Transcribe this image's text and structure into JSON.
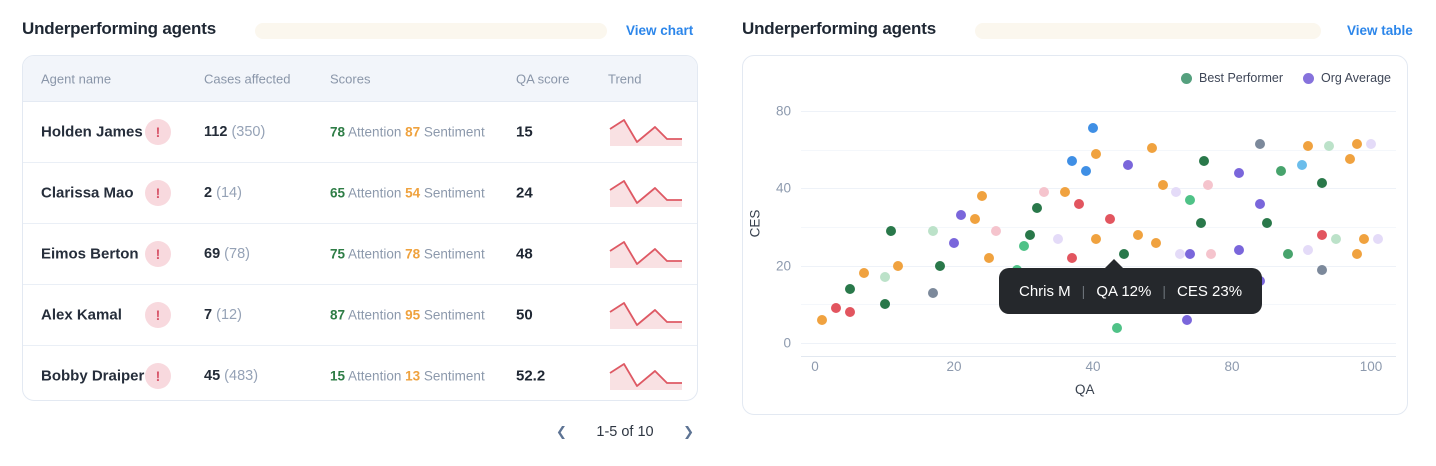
{
  "icons": {
    "chevron_left": "❮",
    "chevron_right": "❯",
    "warning_glyph": "!"
  },
  "left_panel": {
    "title": "Underperforming agents",
    "action": "View chart",
    "columns": [
      "Agent name",
      "Cases affected",
      "Scores",
      "QA score",
      "Trend"
    ],
    "attention_label": "Attention",
    "sentiment_label": "Sentiment",
    "rows": [
      {
        "name": "Holden James",
        "cases": "112",
        "cases_total": "(350)",
        "attention": "78",
        "sentiment": "87",
        "qa": "15"
      },
      {
        "name": "Clarissa Mao",
        "cases": "2",
        "cases_total": "(14)",
        "attention": "65",
        "sentiment": "54",
        "qa": "24"
      },
      {
        "name": "Eimos Berton",
        "cases": "69",
        "cases_total": "(78)",
        "attention": "75",
        "sentiment": "78",
        "qa": "48"
      },
      {
        "name": "Alex Kamal",
        "cases": "7",
        "cases_total": "(12)",
        "attention": "87",
        "sentiment": "95",
        "qa": "50"
      },
      {
        "name": "Bobby Draiper",
        "cases": "45",
        "cases_total": "(483)",
        "attention": "15",
        "sentiment": "13",
        "qa": "52.2"
      }
    ],
    "trend_points": [
      [
        2,
        13
      ],
      [
        16,
        4
      ],
      [
        29,
        26
      ],
      [
        47,
        11
      ],
      [
        59,
        23
      ],
      [
        74,
        23
      ]
    ],
    "trend_color": "#de5964",
    "trend_fill": "rgba(222,89,100,0.18)",
    "pagination": "1-5 of 10"
  },
  "right_panel": {
    "title": "Underperforming agents",
    "action": "View table",
    "legend": [
      {
        "label": "Best Performer",
        "color": "#55a07e"
      },
      {
        "label": "Org Average",
        "color": "#8672dc"
      }
    ],
    "tooltip": {
      "name": "Chris M",
      "qa": "QA 12%",
      "ces": "CES 23%"
    }
  },
  "chart_data": {
    "type": "scatter",
    "title": "Underperforming agents",
    "xlabel": "QA",
    "ylabel": "CES",
    "x_tick_values": [
      0,
      20,
      40,
      80,
      100
    ],
    "y_tick_values": [
      0,
      20,
      40,
      80
    ],
    "grid": true,
    "legend_position": "top-right",
    "colors": {
      "orange": "#f0a23f",
      "red": "#e2555f",
      "green_dark": "#29784a",
      "green_med": "#47a36c",
      "green_mint": "#4fc287",
      "green_pale": "#bce2c9",
      "blue": "#3f8fe5",
      "blue_light": "#6bbdeb",
      "purple": "#7a66db",
      "lavender": "#e4dbf8",
      "pink": "#f5c4cd",
      "slate": "#7c899b"
    },
    "points": [
      {
        "qa": 1,
        "ces": 6,
        "c": "orange"
      },
      {
        "qa": 3,
        "ces": 9,
        "c": "red"
      },
      {
        "qa": 5,
        "ces": 8,
        "c": "red"
      },
      {
        "qa": 5,
        "ces": 14,
        "c": "green_dark"
      },
      {
        "qa": 10,
        "ces": 10,
        "c": "green_dark"
      },
      {
        "qa": 10,
        "ces": 17,
        "c": "green_pale"
      },
      {
        "qa": 7,
        "ces": 18,
        "c": "orange"
      },
      {
        "qa": 12,
        "ces": 20,
        "c": "orange"
      },
      {
        "qa": 11,
        "ces": 29,
        "c": "green_dark"
      },
      {
        "qa": 17,
        "ces": 29,
        "c": "green_pale"
      },
      {
        "qa": 17,
        "ces": 13,
        "c": "slate"
      },
      {
        "qa": 18,
        "ces": 20,
        "c": "green_dark"
      },
      {
        "qa": 25,
        "ces": 22,
        "c": "orange"
      },
      {
        "qa": 29,
        "ces": 19,
        "c": "green_mint"
      },
      {
        "qa": 37,
        "ces": 22,
        "c": "red"
      },
      {
        "qa": 21,
        "ces": 33,
        "c": "purple"
      },
      {
        "qa": 24,
        "ces": 38,
        "c": "orange"
      },
      {
        "qa": 23,
        "ces": 32,
        "c": "orange"
      },
      {
        "qa": 20,
        "ces": 26,
        "c": "purple"
      },
      {
        "qa": 26,
        "ces": 29,
        "c": "pink"
      },
      {
        "qa": 31,
        "ces": 28,
        "c": "green_dark"
      },
      {
        "qa": 33,
        "ces": 39,
        "c": "pink"
      },
      {
        "qa": 35,
        "ces": 27,
        "c": "lavender"
      },
      {
        "qa": 30,
        "ces": 25,
        "c": "green_mint"
      },
      {
        "qa": 36,
        "ces": 39,
        "c": "orange"
      },
      {
        "qa": 32,
        "ces": 35,
        "c": "green_dark"
      },
      {
        "qa": 38,
        "ces": 36,
        "c": "red"
      },
      {
        "qa": 37,
        "ces": 54,
        "c": "blue"
      },
      {
        "qa": 39,
        "ces": 49,
        "c": "blue"
      },
      {
        "qa": 40,
        "ces": 71,
        "c": "blue"
      },
      {
        "qa": 41,
        "ces": 58,
        "c": "orange"
      },
      {
        "qa": 57,
        "ces": 61,
        "c": "orange"
      },
      {
        "qa": 84,
        "ces": 63,
        "c": "slate"
      },
      {
        "qa": 91,
        "ces": 62,
        "c": "orange"
      },
      {
        "qa": 94,
        "ces": 62,
        "c": "green_pale"
      },
      {
        "qa": 98,
        "ces": 63,
        "c": "orange"
      },
      {
        "qa": 100,
        "ces": 63,
        "c": "lavender"
      },
      {
        "qa": 97,
        "ces": 55,
        "c": "orange"
      },
      {
        "qa": 72,
        "ces": 54,
        "c": "green_dark"
      },
      {
        "qa": 50,
        "ces": 52,
        "c": "purple"
      },
      {
        "qa": 81,
        "ces": 48,
        "c": "purple"
      },
      {
        "qa": 87,
        "ces": 49,
        "c": "green_med"
      },
      {
        "qa": 90,
        "ces": 52,
        "c": "blue_light"
      },
      {
        "qa": 93,
        "ces": 43,
        "c": "green_dark"
      },
      {
        "qa": 60,
        "ces": 42,
        "c": "orange"
      },
      {
        "qa": 73,
        "ces": 42,
        "c": "pink"
      },
      {
        "qa": 64,
        "ces": 39,
        "c": "lavender"
      },
      {
        "qa": 68,
        "ces": 37,
        "c": "green_mint"
      },
      {
        "qa": 84,
        "ces": 36,
        "c": "purple"
      },
      {
        "qa": 45,
        "ces": 32,
        "c": "red"
      },
      {
        "qa": 71,
        "ces": 31,
        "c": "green_dark"
      },
      {
        "qa": 85,
        "ces": 31,
        "c": "green_dark"
      },
      {
        "qa": 93,
        "ces": 28,
        "c": "red"
      },
      {
        "qa": 95,
        "ces": 27,
        "c": "green_pale"
      },
      {
        "qa": 41,
        "ces": 27,
        "c": "orange"
      },
      {
        "qa": 53,
        "ces": 28,
        "c": "orange"
      },
      {
        "qa": 58,
        "ces": 26,
        "c": "orange"
      },
      {
        "qa": 99,
        "ces": 27,
        "c": "orange"
      },
      {
        "qa": 101,
        "ces": 27,
        "c": "lavender"
      },
      {
        "qa": 49,
        "ces": 23,
        "c": "green_dark"
      },
      {
        "qa": 65,
        "ces": 23,
        "c": "lavender"
      },
      {
        "qa": 68,
        "ces": 23,
        "c": "purple"
      },
      {
        "qa": 74,
        "ces": 23,
        "c": "pink"
      },
      {
        "qa": 81,
        "ces": 24,
        "c": "purple"
      },
      {
        "qa": 88,
        "ces": 23,
        "c": "green_med"
      },
      {
        "qa": 91,
        "ces": 24,
        "c": "lavender"
      },
      {
        "qa": 98,
        "ces": 23,
        "c": "orange"
      },
      {
        "qa": 93,
        "ces": 19,
        "c": "slate"
      },
      {
        "qa": 50,
        "ces": 18,
        "c": "blue_light"
      },
      {
        "qa": 84,
        "ces": 16,
        "c": "purple"
      },
      {
        "qa": 67,
        "ces": 6,
        "c": "purple"
      },
      {
        "qa": 47,
        "ces": 4,
        "c": "green_mint"
      }
    ]
  }
}
